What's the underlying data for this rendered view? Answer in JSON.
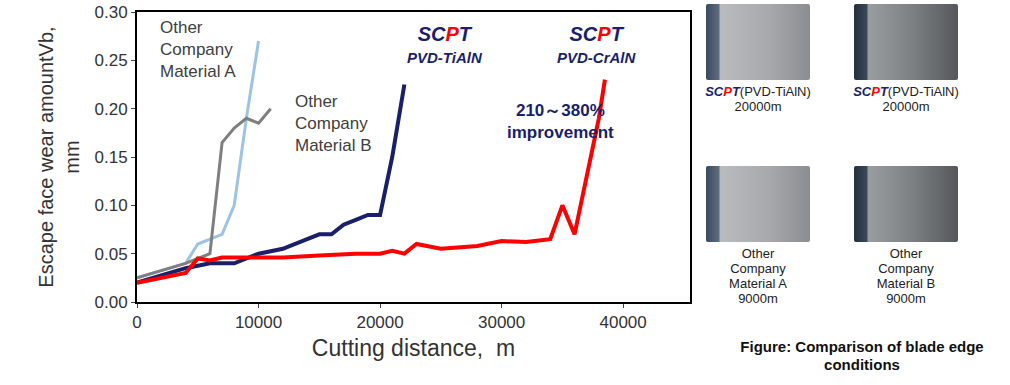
{
  "chart_data": {
    "type": "line",
    "x_label": "Cutting distance,  m",
    "y_label": "Escape face wear amountVb, mm",
    "xlim": [
      0,
      45500
    ],
    "xticks": [
      0,
      10000,
      20000,
      30000,
      40000
    ],
    "ylim": [
      0,
      0.3
    ],
    "yticks": [
      {
        "value": 0,
        "label": "0.00"
      },
      {
        "value": 0.05,
        "label": "0.05"
      },
      {
        "value": 0.1,
        "label": "0.10"
      },
      {
        "value": 0.15,
        "label": "0.15"
      },
      {
        "value": 0.2,
        "label": "0.20"
      },
      {
        "value": 0.25,
        "label": "0.25"
      },
      {
        "value": 0.3,
        "label": "0.30"
      }
    ],
    "grid": false,
    "annotations": [
      "210～380% improvement"
    ],
    "series": [
      {
        "name": "Other Company Material A",
        "color": "#9dc3e6",
        "x": [
          0,
          4000,
          5000,
          7000,
          8000,
          9000,
          10000
        ],
        "values": [
          0.025,
          0.04,
          0.06,
          0.07,
          0.1,
          0.19,
          0.27
        ]
      },
      {
        "name": "Other Company Material B",
        "color": "#7f7f7f",
        "x": [
          0,
          4000,
          6000,
          7000,
          8000,
          9000,
          10000,
          11000
        ],
        "values": [
          0.025,
          0.04,
          0.05,
          0.165,
          0.18,
          0.19,
          0.185,
          0.2
        ]
      },
      {
        "name": "SCPT PVD-TiAlN",
        "color": "#1a1f6b",
        "x": [
          0,
          4000,
          6000,
          8000,
          10000,
          12000,
          14000,
          15000,
          16000,
          17000,
          18000,
          19000,
          20000,
          21000,
          22000
        ],
        "values": [
          0.02,
          0.035,
          0.04,
          0.04,
          0.05,
          0.055,
          0.065,
          0.07,
          0.07,
          0.08,
          0.085,
          0.09,
          0.09,
          0.15,
          0.225
        ]
      },
      {
        "name": "SCPT PVD-CrAlN",
        "color": "#ff0000",
        "x": [
          0,
          4000,
          5000,
          6000,
          7000,
          10000,
          12000,
          15000,
          18000,
          20000,
          21000,
          22000,
          23000,
          25000,
          28000,
          30000,
          32000,
          34000,
          35000,
          36000,
          37000,
          38000,
          38500
        ],
        "values": [
          0.02,
          0.03,
          0.045,
          0.043,
          0.046,
          0.046,
          0.046,
          0.048,
          0.05,
          0.05,
          0.053,
          0.05,
          0.06,
          0.055,
          0.058,
          0.063,
          0.062,
          0.065,
          0.1,
          0.07,
          0.13,
          0.19,
          0.23
        ]
      }
    ]
  },
  "figure_panel": {
    "photos": [
      {
        "caption": [
          "SCPT(PVD-TiAlN)",
          "20000m"
        ]
      },
      {
        "caption": [
          "SCPT(PVD-TiAlN)",
          "20000m"
        ]
      },
      {
        "caption": [
          "Other",
          "Company",
          "Material A",
          "9000m"
        ]
      },
      {
        "caption": [
          "Other",
          "Company",
          "Material B",
          "9000m"
        ]
      }
    ],
    "caption": "Figure: Comparison of blade edge conditions"
  }
}
